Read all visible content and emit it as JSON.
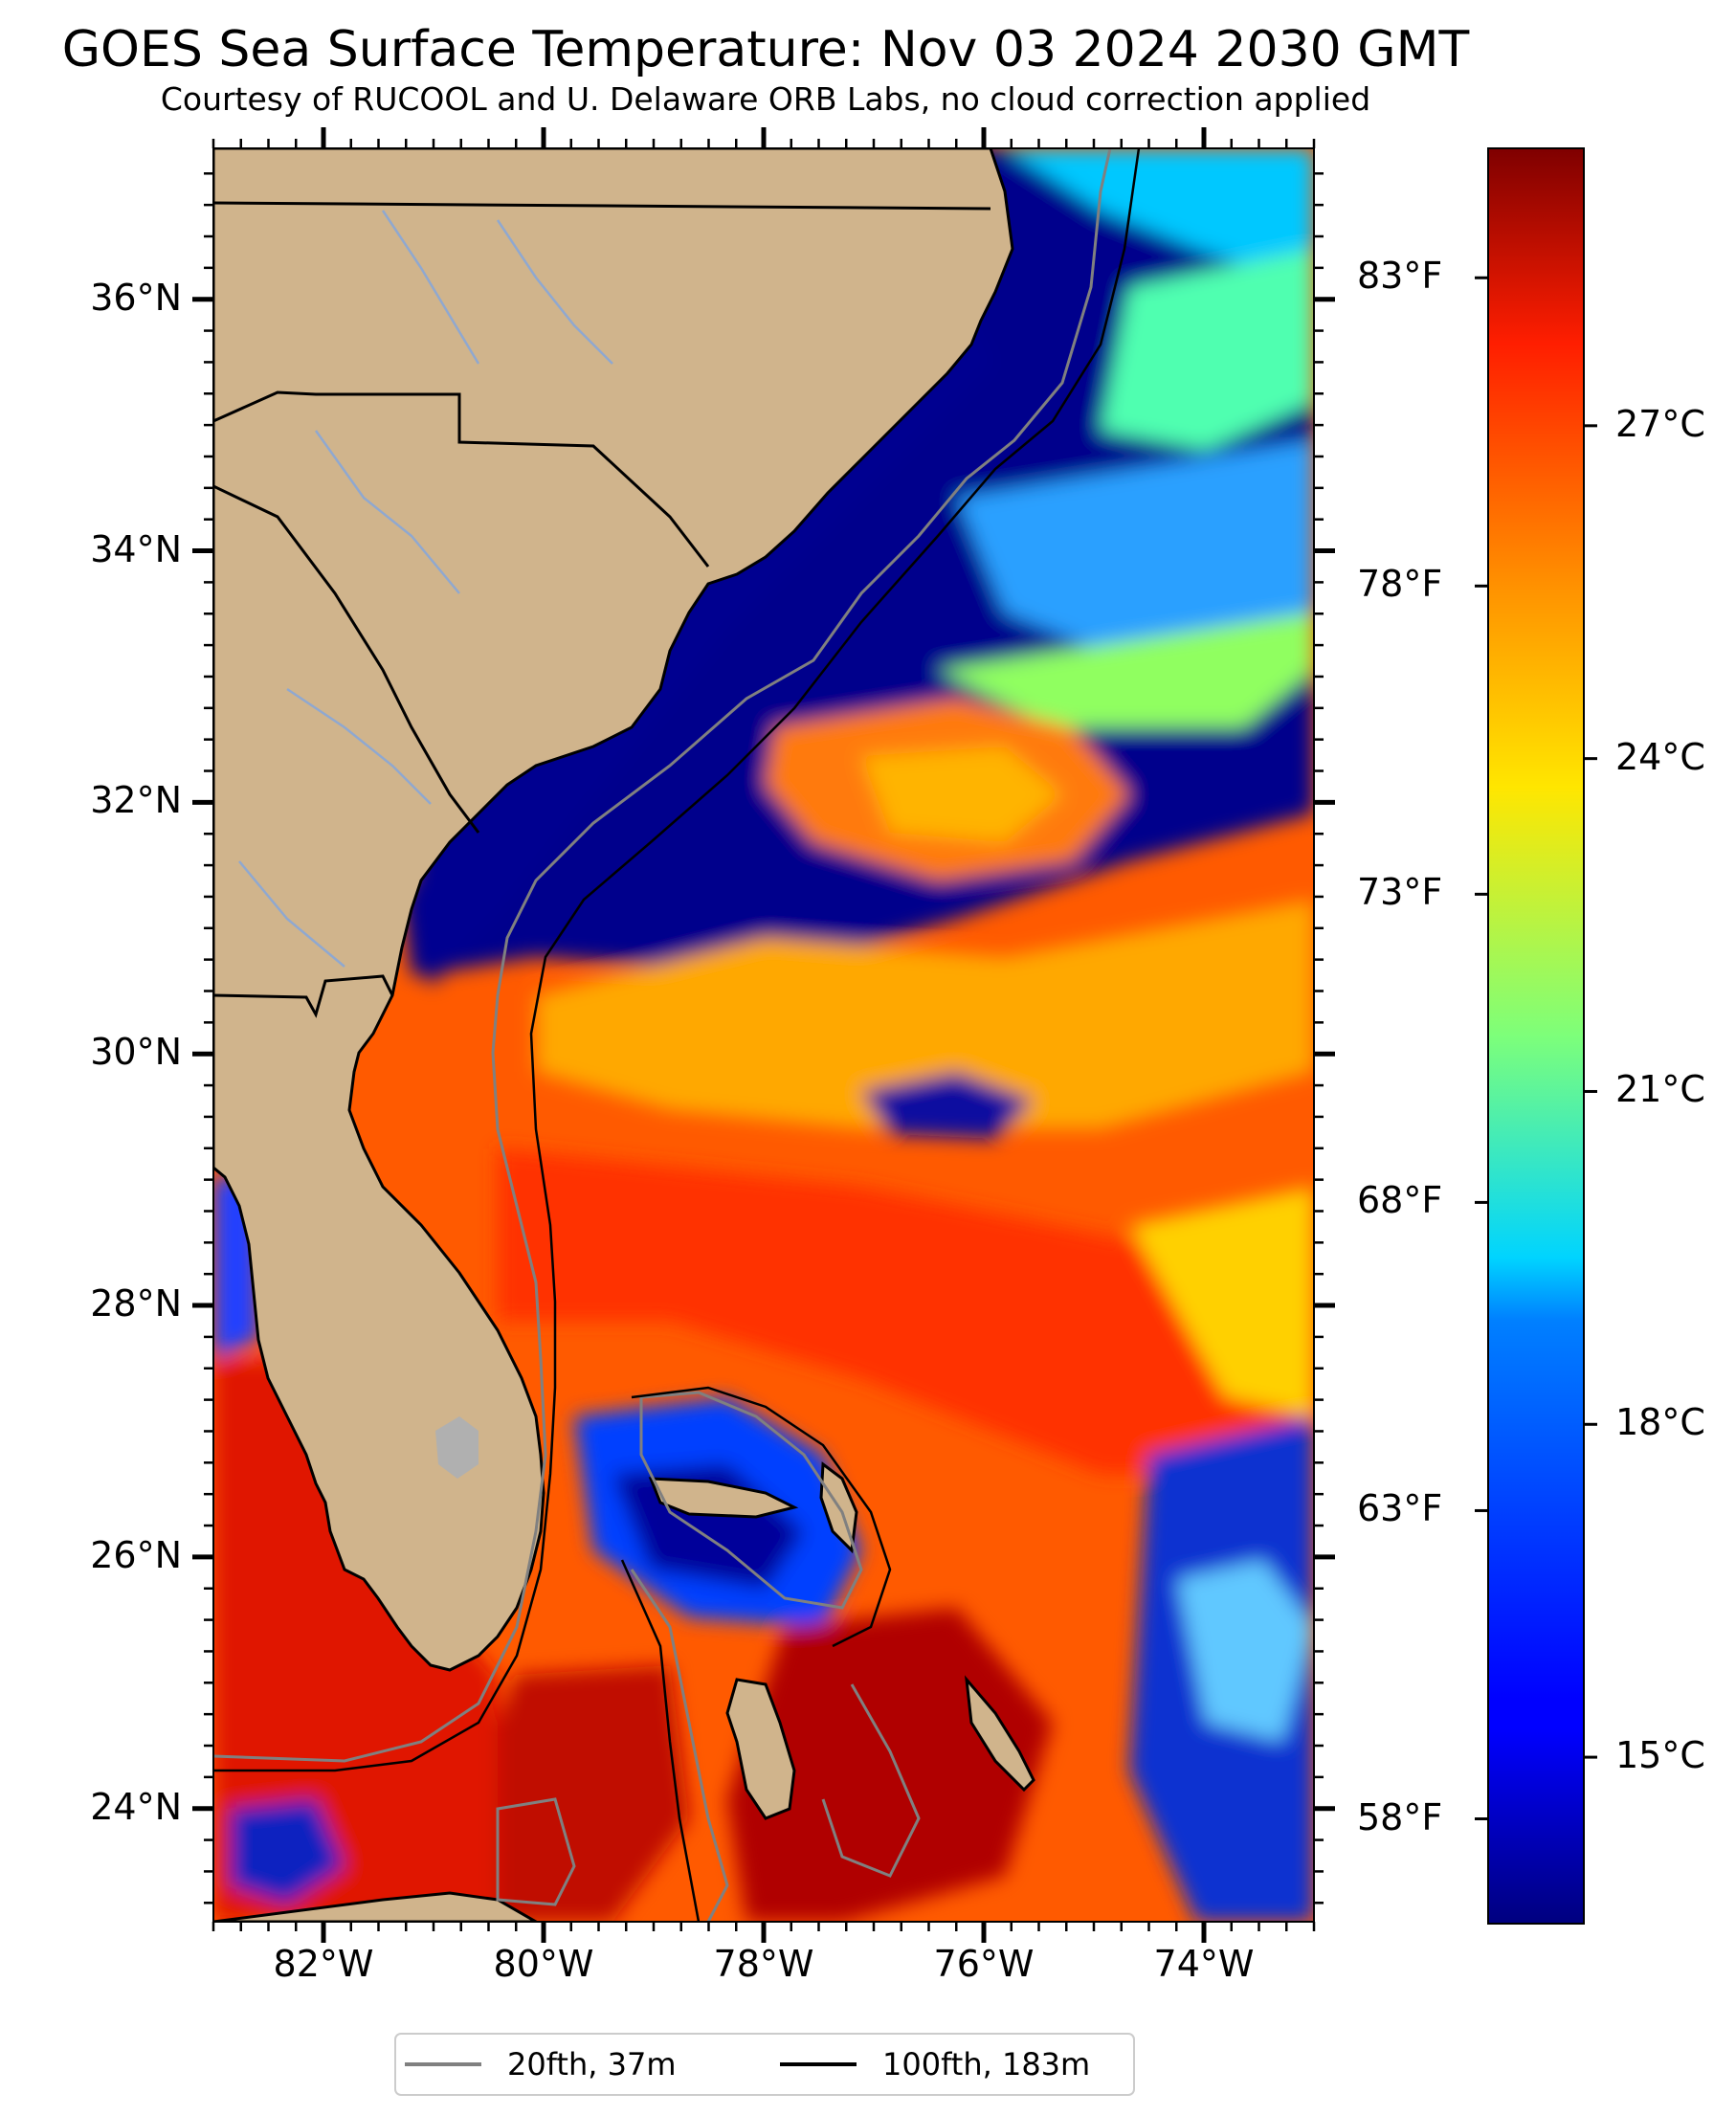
{
  "title": "GOES Sea Surface Temperature: Nov 03 2024 2030 GMT",
  "subtitle": "Courtesy of RUCOOL and U. Delaware ORB Labs, no cloud correction applied",
  "map": {
    "extent": {
      "lon_min": -83,
      "lon_max": -73,
      "lat_min": 23.1,
      "lat_max": 37.2
    },
    "lat_ticks": [
      {
        "value": 36,
        "label": "36°N"
      },
      {
        "value": 34,
        "label": "34°N"
      },
      {
        "value": 32,
        "label": "32°N"
      },
      {
        "value": 30,
        "label": "30°N"
      },
      {
        "value": 28,
        "label": "28°N"
      },
      {
        "value": 26,
        "label": "26°N"
      },
      {
        "value": 24,
        "label": "24°N"
      }
    ],
    "lon_ticks": [
      {
        "value": -82,
        "label": "82°W"
      },
      {
        "value": -80,
        "label": "80°W"
      },
      {
        "value": -78,
        "label": "78°W"
      },
      {
        "value": -76,
        "label": "76°W"
      },
      {
        "value": -74,
        "label": "74°W"
      }
    ],
    "land_color": "#d0b48c",
    "boundary_color": "#000000"
  },
  "colorbar": {
    "colormap": "jet",
    "celsius_ticks": [
      {
        "value": 15,
        "label": "15°C"
      },
      {
        "value": 18,
        "label": "18°C"
      },
      {
        "value": 21,
        "label": "21°C"
      },
      {
        "value": 24,
        "label": "24°C"
      },
      {
        "value": 27,
        "label": "27°C"
      }
    ],
    "fahrenheit_ticks": [
      {
        "value": 58,
        "label": "58°F"
      },
      {
        "value": 63,
        "label": "63°F"
      },
      {
        "value": 68,
        "label": "68°F"
      },
      {
        "value": 73,
        "label": "73°F"
      },
      {
        "value": 78,
        "label": "78°F"
      },
      {
        "value": 83,
        "label": "83°F"
      }
    ]
  },
  "legend": {
    "items": [
      {
        "label": "20fth, 37m",
        "color": "#808080"
      },
      {
        "label": "100fth, 183m",
        "color": "#000000"
      }
    ]
  }
}
